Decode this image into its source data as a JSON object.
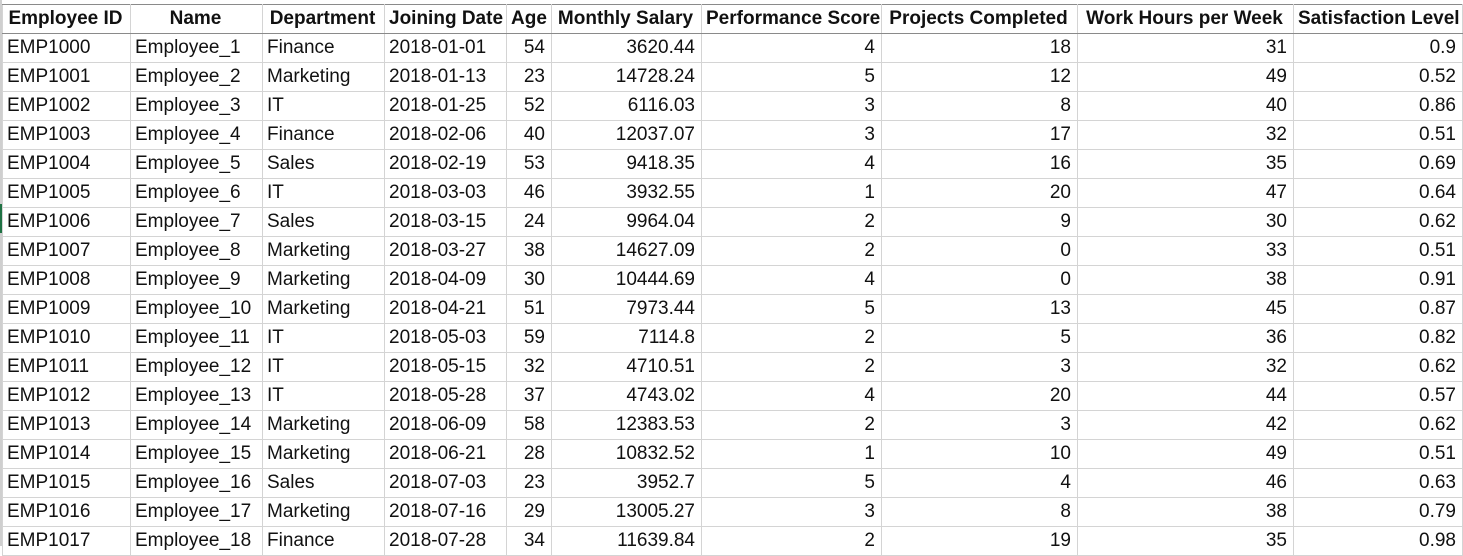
{
  "spreadsheet": {
    "columns": [
      "Employee ID",
      "Name",
      "Department",
      "Joining Date",
      "Age",
      "Monthly Salary",
      "Performance Score",
      "Projects Completed",
      "Work Hours per Week",
      "Satisfaction Level"
    ],
    "rows": [
      [
        "EMP1000",
        "Employee_1",
        "Finance",
        "2018-01-01",
        "54",
        "3620.44",
        "4",
        "18",
        "31",
        "0.9"
      ],
      [
        "EMP1001",
        "Employee_2",
        "Marketing",
        "2018-01-13",
        "23",
        "14728.24",
        "5",
        "12",
        "49",
        "0.52"
      ],
      [
        "EMP1002",
        "Employee_3",
        "IT",
        "2018-01-25",
        "52",
        "6116.03",
        "3",
        "8",
        "40",
        "0.86"
      ],
      [
        "EMP1003",
        "Employee_4",
        "Finance",
        "2018-02-06",
        "40",
        "12037.07",
        "3",
        "17",
        "32",
        "0.51"
      ],
      [
        "EMP1004",
        "Employee_5",
        "Sales",
        "2018-02-19",
        "53",
        "9418.35",
        "4",
        "16",
        "35",
        "0.69"
      ],
      [
        "EMP1005",
        "Employee_6",
        "IT",
        "2018-03-03",
        "46",
        "3932.55",
        "1",
        "20",
        "47",
        "0.64"
      ],
      [
        "EMP1006",
        "Employee_7",
        "Sales",
        "2018-03-15",
        "24",
        "9964.04",
        "2",
        "9",
        "30",
        "0.62"
      ],
      [
        "EMP1007",
        "Employee_8",
        "Marketing",
        "2018-03-27",
        "38",
        "14627.09",
        "2",
        "0",
        "33",
        "0.51"
      ],
      [
        "EMP1008",
        "Employee_9",
        "Marketing",
        "2018-04-09",
        "30",
        "10444.69",
        "4",
        "0",
        "38",
        "0.91"
      ],
      [
        "EMP1009",
        "Employee_10",
        "Marketing",
        "2018-04-21",
        "51",
        "7973.44",
        "5",
        "13",
        "45",
        "0.87"
      ],
      [
        "EMP1010",
        "Employee_11",
        "IT",
        "2018-05-03",
        "59",
        "7114.8",
        "2",
        "5",
        "36",
        "0.82"
      ],
      [
        "EMP1011",
        "Employee_12",
        "IT",
        "2018-05-15",
        "32",
        "4710.51",
        "2",
        "3",
        "32",
        "0.62"
      ],
      [
        "EMP1012",
        "Employee_13",
        "IT",
        "2018-05-28",
        "37",
        "4743.02",
        "4",
        "20",
        "44",
        "0.57"
      ],
      [
        "EMP1013",
        "Employee_14",
        "Marketing",
        "2018-06-09",
        "58",
        "12383.53",
        "2",
        "3",
        "42",
        "0.62"
      ],
      [
        "EMP1014",
        "Employee_15",
        "Marketing",
        "2018-06-21",
        "28",
        "10832.52",
        "1",
        "10",
        "49",
        "0.51"
      ],
      [
        "EMP1015",
        "Employee_16",
        "Sales",
        "2018-07-03",
        "23",
        "3952.7",
        "5",
        "4",
        "46",
        "0.63"
      ],
      [
        "EMP1016",
        "Employee_17",
        "Marketing",
        "2018-07-16",
        "29",
        "13005.27",
        "3",
        "8",
        "38",
        "0.79"
      ],
      [
        "EMP1017",
        "Employee_18",
        "Finance",
        "2018-07-28",
        "34",
        "11639.84",
        "2",
        "19",
        "35",
        "0.98"
      ]
    ]
  },
  "colors": {
    "grid_line": "#d4d4d4",
    "header_border": "#8a8a8a",
    "active_row_marker": "#1f7244",
    "text": "#111111"
  }
}
